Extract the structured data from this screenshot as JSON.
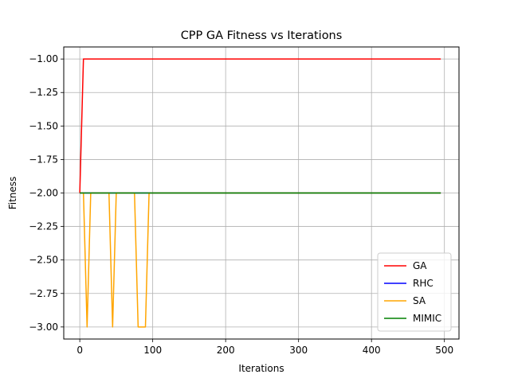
{
  "chart_data": {
    "type": "line",
    "title": "CPP GA Fitness vs Iterations",
    "xlabel": "Iterations",
    "ylabel": "Fitness",
    "xlim": [
      -22,
      520
    ],
    "ylim": [
      -3.09,
      -0.91
    ],
    "xticks": [
      0,
      100,
      200,
      300,
      400,
      500
    ],
    "yticks": [
      -1.0,
      -1.25,
      -1.5,
      -1.75,
      -2.0,
      -2.25,
      -2.5,
      -2.75,
      -3.0
    ],
    "xtick_labels": [
      "0",
      "100",
      "200",
      "300",
      "400",
      "500"
    ],
    "ytick_labels": [
      "−1.00",
      "−1.25",
      "−1.50",
      "−1.75",
      "−2.00",
      "−2.25",
      "−2.50",
      "−2.75",
      "−3.00"
    ],
    "grid": true,
    "legend_position": "lower-right",
    "series": [
      {
        "name": "GA",
        "color": "#ff0000",
        "x": [
          0,
          5,
          495
        ],
        "y": [
          -2.0,
          -1.0,
          -1.0
        ]
      },
      {
        "name": "RHC",
        "color": "#0000ff",
        "x": [
          0,
          495
        ],
        "y": [
          -2.0,
          -2.0
        ]
      },
      {
        "name": "SA",
        "color": "#ffa500",
        "x": [
          0,
          5,
          10,
          15,
          20,
          40,
          45,
          50,
          55,
          70,
          75,
          80,
          90,
          95,
          100,
          495
        ],
        "y": [
          -2.0,
          -2.0,
          -3.0,
          -2.0,
          -2.0,
          -2.0,
          -3.0,
          -2.0,
          -2.0,
          -2.0,
          -2.0,
          -3.0,
          -3.0,
          -2.0,
          -2.0,
          -2.0
        ]
      },
      {
        "name": "MIMIC",
        "color": "#008000",
        "x": [
          0,
          495
        ],
        "y": [
          -2.0,
          -2.0
        ]
      }
    ]
  }
}
